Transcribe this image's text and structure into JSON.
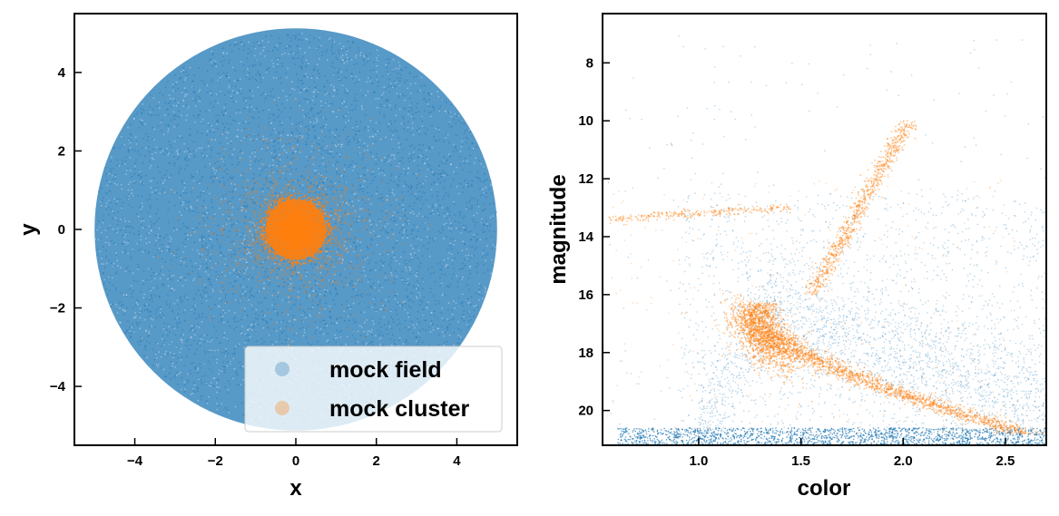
{
  "colors": {
    "field": "#1f77b4",
    "cluster": "#ff7f0e"
  },
  "chart_data": [
    {
      "type": "scatter",
      "panel": "left",
      "xlabel": "x",
      "ylabel": "y",
      "xlim": [
        -5.5,
        5.5
      ],
      "ylim": [
        -5.5,
        5.5
      ],
      "xticks": [
        -4,
        -2,
        0,
        2,
        4
      ],
      "yticks": [
        -4,
        -2,
        0,
        2,
        4
      ],
      "xtick_labels": [
        "−4",
        "−2",
        "0",
        "2",
        "4"
      ],
      "ytick_labels": [
        "−4",
        "−2",
        "0",
        "2",
        "4"
      ],
      "grid": false,
      "legend": {
        "placement": "lower-right",
        "entries": [
          "mock field",
          "mock cluster"
        ]
      },
      "series": [
        {
          "name": "mock field",
          "color": "#1f77b4",
          "distribution": "uniform disk",
          "center": [
            0,
            0
          ],
          "radius": 5.0
        },
        {
          "name": "mock cluster",
          "color": "#ff7f0e",
          "distribution": "concentrated core",
          "center": [
            0,
            0
          ],
          "core_radius": 0.8,
          "extent": 3.5
        }
      ]
    },
    {
      "type": "scatter",
      "panel": "right",
      "xlabel": "color",
      "ylabel": "magnitude",
      "xlim": [
        0.53,
        2.7
      ],
      "ylim": [
        21.2,
        6.3
      ],
      "y_inverted": true,
      "xticks": [
        1.0,
        1.5,
        2.0,
        2.5
      ],
      "yticks": [
        8,
        10,
        12,
        14,
        16,
        18,
        20
      ],
      "xtick_labels": [
        "1.0",
        "1.5",
        "2.0",
        "2.5"
      ],
      "ytick_labels": [
        "8",
        "10",
        "12",
        "14",
        "16",
        "18",
        "20"
      ],
      "grid": false,
      "series": [
        {
          "name": "mock field",
          "color": "#1f77b4",
          "features": {
            "main_band": [
              [
                1.0,
                21.2
              ],
              [
                1.3,
                16.5
              ],
              [
                1.8,
                18.5
              ],
              [
                2.7,
                19.8
              ]
            ],
            "faint_floor_magnitude": 21.0
          }
        },
        {
          "name": "mock cluster",
          "color": "#ff7f0e",
          "features": {
            "turnoff": [
              1.3,
              17.5
            ],
            "main_sequence": [
              [
                1.3,
                17.5
              ],
              [
                1.6,
                19.0
              ],
              [
                2.1,
                20.5
              ]
            ],
            "giant_branch": [
              [
                1.55,
                15.5
              ],
              [
                1.7,
                12.5
              ],
              [
                1.9,
                10.8
              ],
              [
                2.05,
                10.0
              ]
            ],
            "horizontal_branch": [
              [
                0.55,
                13.4
              ],
              [
                1.4,
                13.0
              ]
            ]
          }
        }
      ]
    }
  ]
}
